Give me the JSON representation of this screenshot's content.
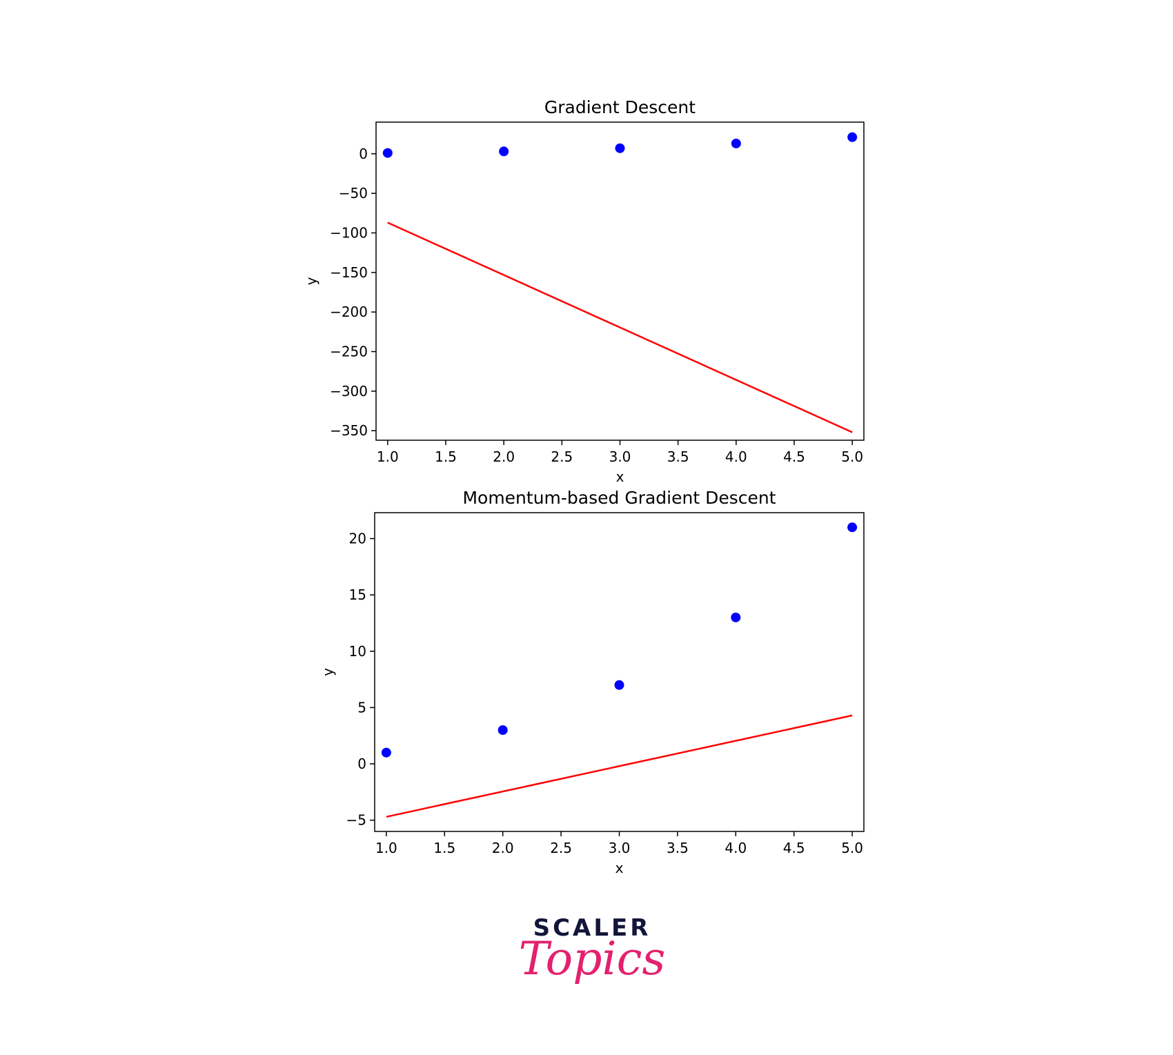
{
  "chart_data": [
    {
      "type": "scatter",
      "title": "Gradient Descent",
      "xlabel": "x",
      "ylabel": "y",
      "x_ticks": [
        1.0,
        1.5,
        2.0,
        2.5,
        3.0,
        3.5,
        4.0,
        4.5,
        5.0
      ],
      "y_ticks": [
        0,
        -50,
        -100,
        -150,
        -200,
        -250,
        -300,
        -350
      ],
      "xlim": [
        0.9,
        5.1
      ],
      "ylim": [
        -362,
        40
      ],
      "grid": false,
      "series": [
        {
          "kind": "scatter",
          "color": "#0000ff",
          "x": [
            1,
            2,
            3,
            4,
            5
          ],
          "y": [
            1,
            3,
            7,
            13,
            21
          ]
        },
        {
          "kind": "line",
          "color": "#ff0000",
          "x": [
            1,
            5
          ],
          "y": [
            -87,
            -352
          ]
        }
      ]
    },
    {
      "type": "scatter",
      "title": "Momentum-based Gradient Descent",
      "xlabel": "x",
      "ylabel": "y",
      "x_ticks": [
        1.0,
        1.5,
        2.0,
        2.5,
        3.0,
        3.5,
        4.0,
        4.5,
        5.0
      ],
      "y_ticks": [
        20,
        15,
        10,
        5,
        0,
        -5
      ],
      "xlim": [
        0.9,
        5.1
      ],
      "ylim": [
        -6,
        22.3
      ],
      "grid": false,
      "series": [
        {
          "kind": "scatter",
          "color": "#0000ff",
          "x": [
            1,
            2,
            3,
            4,
            5
          ],
          "y": [
            1,
            3,
            7,
            13,
            21
          ]
        },
        {
          "kind": "line",
          "color": "#ff0000",
          "x": [
            1,
            5
          ],
          "y": [
            -4.7,
            4.3
          ]
        }
      ]
    }
  ],
  "branding": {
    "line1": "SCALER",
    "line2": "Topics"
  }
}
